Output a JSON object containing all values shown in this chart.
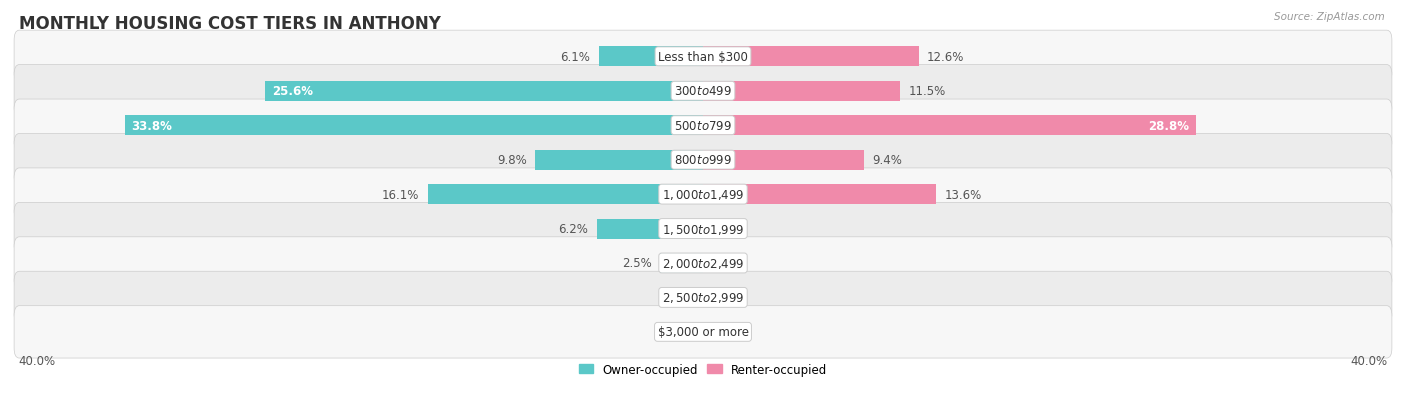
{
  "title": "MONTHLY HOUSING COST TIERS IN ANTHONY",
  "source": "Source: ZipAtlas.com",
  "categories": [
    "Less than $300",
    "$300 to $499",
    "$500 to $799",
    "$800 to $999",
    "$1,000 to $1,499",
    "$1,500 to $1,999",
    "$2,000 to $2,499",
    "$2,500 to $2,999",
    "$3,000 or more"
  ],
  "owner_values": [
    6.1,
    25.6,
    33.8,
    9.8,
    16.1,
    6.2,
    2.5,
    0.0,
    0.0
  ],
  "renter_values": [
    12.6,
    11.5,
    28.8,
    9.4,
    13.6,
    0.0,
    0.0,
    0.0,
    0.0
  ],
  "owner_color": "#5bc8c8",
  "renter_color": "#f08aaa",
  "row_bg_light": "#f7f7f7",
  "row_bg_dark": "#ececec",
  "xlim": 40.0,
  "legend_labels": [
    "Owner-occupied",
    "Renter-occupied"
  ],
  "title_fontsize": 12,
  "label_fontsize": 8.5,
  "bar_height": 0.58,
  "figsize": [
    14.06,
    4.14
  ],
  "dpi": 100,
  "inside_label_threshold": 18,
  "min_bar_display": 1.5
}
